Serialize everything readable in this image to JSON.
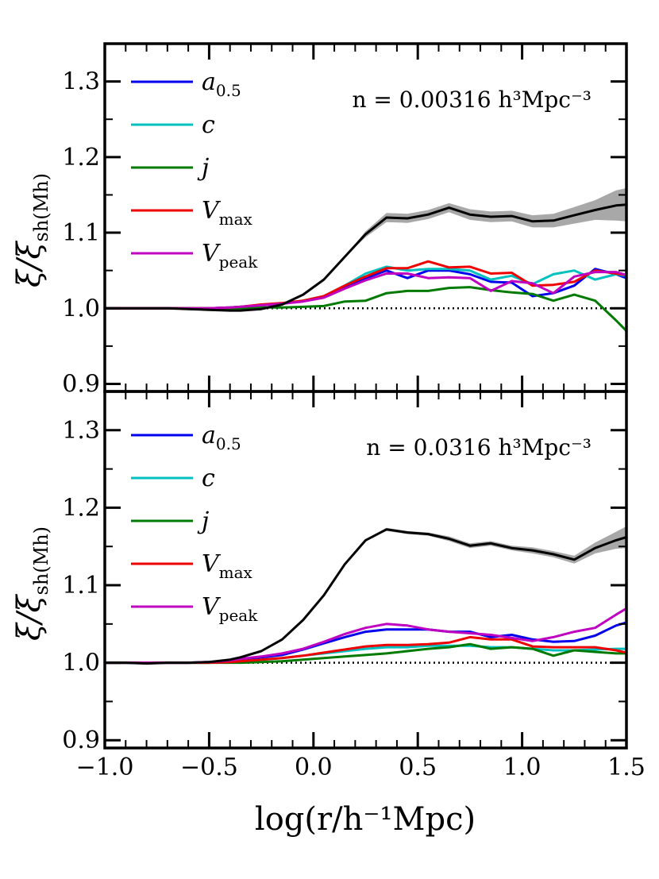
{
  "figure": {
    "xlabel": "log(r/h⁻¹Mpc)",
    "ylabel_main": "ξ/ξ",
    "ylabel_sub": "sh(Mh)"
  },
  "chart_data": [
    {
      "type": "line",
      "panel": "top",
      "annotation": "n = 0.00316 h³Mpc⁻³",
      "xlim": [
        -1.0,
        1.5
      ],
      "ylim": [
        0.89,
        1.35
      ],
      "xticks": [
        -1.0,
        -0.5,
        0.0,
        0.5,
        1.0,
        1.5
      ],
      "xtick_labels": [
        "−1.0",
        "−0.5",
        "0.0",
        "0.5",
        "1.0",
        "1.5"
      ],
      "yticks": [
        0.9,
        1.0,
        1.1,
        1.2,
        1.3
      ],
      "ytick_labels": [
        "0.9",
        "1.0",
        "1.1",
        "1.2",
        "1.3"
      ],
      "x": [
        -1.0,
        -0.9,
        -0.8,
        -0.7,
        -0.6,
        -0.5,
        -0.4,
        -0.35,
        -0.25,
        -0.15,
        -0.05,
        0.05,
        0.15,
        0.25,
        0.35,
        0.45,
        0.55,
        0.65,
        0.75,
        0.85,
        0.95,
        1.05,
        1.15,
        1.25,
        1.35,
        1.45,
        1.5
      ],
      "reference_line": 1.0,
      "black_band": [
        0.0,
        0.0,
        0.0,
        0.0,
        0.0,
        0.0,
        0.0,
        0.0,
        0.0,
        0.0,
        0.0,
        0.0,
        0.0,
        0.004,
        0.006,
        0.006,
        0.006,
        0.006,
        0.007,
        0.007,
        0.007,
        0.008,
        0.009,
        0.011,
        0.013,
        0.02,
        0.022
      ],
      "series": [
        {
          "name": "black",
          "color": "#000000",
          "values": [
            1.0,
            1.0,
            1.0,
            1.0,
            0.999,
            0.998,
            0.997,
            0.997,
            0.999,
            1.005,
            1.018,
            1.038,
            1.068,
            1.098,
            1.12,
            1.119,
            1.124,
            1.133,
            1.124,
            1.121,
            1.122,
            1.115,
            1.116,
            1.123,
            1.13,
            1.136,
            1.137
          ]
        },
        {
          "name": "a_0.5",
          "legend": "a",
          "legend_sub": "0.5",
          "color": "#0000ee",
          "values": [
            1.0,
            1.0,
            1.0,
            1.0,
            1.0,
            1.0,
            1.001,
            1.002,
            1.004,
            1.006,
            1.01,
            1.015,
            1.028,
            1.04,
            1.05,
            1.04,
            1.05,
            1.05,
            1.045,
            1.035,
            1.034,
            1.016,
            1.02,
            1.03,
            1.052,
            1.045,
            1.04
          ]
        },
        {
          "name": "c",
          "legend": "c",
          "legend_sub": "",
          "color": "#00c0c0",
          "values": [
            1.0,
            1.0,
            1.0,
            1.0,
            1.0,
            1.0,
            1.001,
            1.002,
            1.004,
            1.006,
            1.01,
            1.016,
            1.03,
            1.046,
            1.055,
            1.05,
            1.052,
            1.052,
            1.05,
            1.038,
            1.043,
            1.032,
            1.045,
            1.05,
            1.038,
            1.045,
            1.043
          ]
        },
        {
          "name": "j",
          "legend": "j",
          "legend_sub": "",
          "color": "#007a00",
          "values": [
            1.0,
            1.0,
            1.0,
            1.0,
            1.0,
            1.0,
            1.0,
            1.0,
            1.001,
            1.001,
            1.002,
            1.003,
            1.009,
            1.01,
            1.02,
            1.023,
            1.023,
            1.027,
            1.028,
            1.024,
            1.021,
            1.019,
            1.01,
            1.018,
            1.01,
            0.984,
            0.97
          ]
        },
        {
          "name": "V_max",
          "legend": "V",
          "legend_sub": "max",
          "color": "#ee0000",
          "values": [
            1.0,
            1.0,
            1.0,
            1.0,
            1.0,
            1.0,
            1.001,
            1.002,
            1.005,
            1.007,
            1.01,
            1.016,
            1.03,
            1.042,
            1.053,
            1.053,
            1.062,
            1.054,
            1.055,
            1.046,
            1.047,
            1.03,
            1.031,
            1.035,
            1.05,
            1.046,
            1.044
          ]
        },
        {
          "name": "V_peak",
          "legend": "V",
          "legend_sub": "peak",
          "color": "#c000c0",
          "values": [
            1.0,
            1.0,
            1.0,
            1.0,
            1.0,
            1.0,
            1.001,
            1.002,
            1.004,
            1.006,
            1.009,
            1.014,
            1.026,
            1.037,
            1.046,
            1.046,
            1.04,
            1.041,
            1.04,
            1.023,
            1.036,
            1.033,
            1.02,
            1.042,
            1.048,
            1.048,
            1.044
          ]
        }
      ]
    },
    {
      "type": "line",
      "panel": "bottom",
      "annotation": "n = 0.0316 h³Mpc⁻³",
      "xlim": [
        -1.0,
        1.5
      ],
      "ylim": [
        0.89,
        1.35
      ],
      "xticks": [
        -1.0,
        -0.5,
        0.0,
        0.5,
        1.0,
        1.5
      ],
      "xtick_labels": [
        "−1.0",
        "−0.5",
        "0.0",
        "0.5",
        "1.0",
        "1.5"
      ],
      "yticks": [
        0.9,
        1.0,
        1.1,
        1.2,
        1.3
      ],
      "ytick_labels": [
        "0.9",
        "1.0",
        "1.1",
        "1.2",
        "1.3"
      ],
      "x": [
        -1.0,
        -0.9,
        -0.8,
        -0.7,
        -0.6,
        -0.5,
        -0.4,
        -0.35,
        -0.25,
        -0.15,
        -0.05,
        0.05,
        0.15,
        0.25,
        0.35,
        0.45,
        0.55,
        0.65,
        0.75,
        0.85,
        0.95,
        1.05,
        1.15,
        1.25,
        1.35,
        1.45,
        1.5
      ],
      "reference_line": 1.0,
      "black_band": [
        0.0,
        0.0,
        0.0,
        0.0,
        0.0,
        0.0,
        0.0,
        0.0,
        0.0,
        0.0,
        0.0,
        0.0,
        0.0,
        0.0,
        0.002,
        0.002,
        0.002,
        0.003,
        0.003,
        0.003,
        0.003,
        0.004,
        0.004,
        0.005,
        0.007,
        0.011,
        0.014
      ],
      "series": [
        {
          "name": "black",
          "color": "#000000",
          "values": [
            1.0,
            1.0,
            0.999,
            1.0,
            1.0,
            1.001,
            1.004,
            1.007,
            1.015,
            1.03,
            1.055,
            1.087,
            1.127,
            1.158,
            1.172,
            1.168,
            1.166,
            1.16,
            1.151,
            1.154,
            1.148,
            1.145,
            1.14,
            1.133,
            1.148,
            1.158,
            1.162
          ]
        },
        {
          "name": "a_0.5",
          "legend": "a",
          "legend_sub": "0.5",
          "color": "#0000ee",
          "values": [
            1.0,
            1.0,
            1.0,
            1.0,
            1.0,
            1.001,
            1.002,
            1.004,
            1.007,
            1.01,
            1.017,
            1.025,
            1.033,
            1.04,
            1.043,
            1.043,
            1.043,
            1.04,
            1.04,
            1.033,
            1.036,
            1.03,
            1.027,
            1.028,
            1.035,
            1.048,
            1.052
          ]
        },
        {
          "name": "c",
          "legend": "c",
          "legend_sub": "",
          "color": "#00c0c0",
          "values": [
            1.0,
            1.0,
            1.0,
            1.0,
            1.0,
            1.0,
            1.001,
            1.002,
            1.004,
            1.006,
            1.009,
            1.012,
            1.015,
            1.018,
            1.02,
            1.02,
            1.022,
            1.022,
            1.022,
            1.02,
            1.02,
            1.018,
            1.016,
            1.016,
            1.017,
            1.018,
            1.018
          ]
        },
        {
          "name": "j",
          "legend": "j",
          "legend_sub": "",
          "color": "#007a00",
          "values": [
            1.0,
            1.0,
            1.0,
            1.0,
            1.0,
            1.0,
            1.0,
            1.0,
            1.001,
            1.002,
            1.004,
            1.006,
            1.008,
            1.01,
            1.012,
            1.015,
            1.018,
            1.02,
            1.024,
            1.018,
            1.02,
            1.018,
            1.009,
            1.016,
            1.014,
            1.012,
            1.012
          ]
        },
        {
          "name": "V_max",
          "legend": "V",
          "legend_sub": "max",
          "color": "#ee0000",
          "values": [
            1.0,
            1.0,
            1.0,
            1.0,
            1.0,
            1.0,
            1.001,
            1.002,
            1.004,
            1.006,
            1.009,
            1.013,
            1.017,
            1.021,
            1.023,
            1.023,
            1.024,
            1.026,
            1.033,
            1.03,
            1.03,
            1.021,
            1.02,
            1.02,
            1.02,
            1.016,
            1.013
          ]
        },
        {
          "name": "V_peak",
          "legend": "V",
          "legend_sub": "peak",
          "color": "#c000c0",
          "values": [
            1.0,
            1.0,
            1.0,
            1.0,
            1.0,
            1.001,
            1.003,
            1.005,
            1.008,
            1.012,
            1.018,
            1.027,
            1.037,
            1.045,
            1.05,
            1.048,
            1.043,
            1.04,
            1.038,
            1.036,
            1.032,
            1.028,
            1.033,
            1.04,
            1.045,
            1.062,
            1.07
          ]
        }
      ]
    }
  ]
}
